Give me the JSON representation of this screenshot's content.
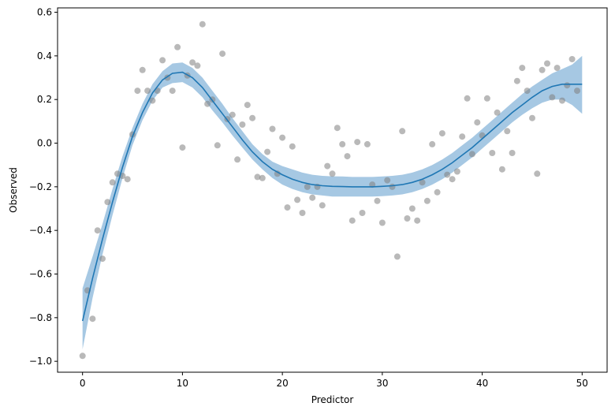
{
  "chart_data": {
    "type": "scatter",
    "title": "",
    "xlabel": "Predictor",
    "ylabel": "Observed",
    "xlim": [
      -2.5,
      52.5
    ],
    "ylim": [
      -1.05,
      0.62
    ],
    "grid": false,
    "legend": "none",
    "x_ticks": [
      0,
      10,
      20,
      30,
      40,
      50
    ],
    "y_ticks": [
      -1.0,
      -0.8,
      -0.6,
      -0.4,
      -0.2,
      0.0,
      0.2,
      0.4,
      0.6
    ],
    "x_tick_labels": [
      "0",
      "10",
      "20",
      "30",
      "40",
      "50"
    ],
    "y_tick_labels": [
      "−1.0",
      "−0.8",
      "−0.6",
      "−0.4",
      "−0.2",
      "0.0",
      "0.2",
      "0.4",
      "0.6"
    ],
    "colors": {
      "points": "#808080",
      "line": "#1f77b4",
      "band": "#a6c8e3"
    },
    "points": [
      [
        0.0,
        -0.975
      ],
      [
        0.5,
        -0.675
      ],
      [
        1.0,
        -0.805
      ],
      [
        1.5,
        -0.4
      ],
      [
        2.0,
        -0.53
      ],
      [
        2.5,
        -0.27
      ],
      [
        3.0,
        -0.18
      ],
      [
        3.5,
        -0.14
      ],
      [
        4.0,
        -0.15
      ],
      [
        4.5,
        -0.165
      ],
      [
        5.0,
        0.04
      ],
      [
        5.5,
        0.24
      ],
      [
        6.0,
        0.335
      ],
      [
        6.5,
        0.24
      ],
      [
        7.0,
        0.195
      ],
      [
        7.5,
        0.24
      ],
      [
        8.0,
        0.38
      ],
      [
        8.5,
        0.3
      ],
      [
        9.0,
        0.24
      ],
      [
        9.5,
        0.44
      ],
      [
        10.0,
        -0.02
      ],
      [
        10.5,
        0.31
      ],
      [
        11.0,
        0.37
      ],
      [
        11.5,
        0.355
      ],
      [
        12.0,
        0.545
      ],
      [
        12.5,
        0.18
      ],
      [
        13.0,
        0.2
      ],
      [
        13.5,
        -0.01
      ],
      [
        14.0,
        0.41
      ],
      [
        14.5,
        0.11
      ],
      [
        15.0,
        0.13
      ],
      [
        15.5,
        -0.075
      ],
      [
        16.0,
        0.085
      ],
      [
        16.5,
        0.175
      ],
      [
        17.0,
        0.115
      ],
      [
        17.5,
        -0.155
      ],
      [
        18.0,
        -0.16
      ],
      [
        18.5,
        -0.04
      ],
      [
        19.0,
        0.065
      ],
      [
        19.5,
        -0.14
      ],
      [
        20.0,
        0.025
      ],
      [
        20.5,
        -0.295
      ],
      [
        21.0,
        -0.015
      ],
      [
        21.5,
        -0.26
      ],
      [
        22.0,
        -0.32
      ],
      [
        22.5,
        -0.2
      ],
      [
        23.0,
        -0.25
      ],
      [
        23.5,
        -0.2
      ],
      [
        24.0,
        -0.285
      ],
      [
        24.5,
        -0.105
      ],
      [
        25.0,
        -0.14
      ],
      [
        25.5,
        0.07
      ],
      [
        26.0,
        -0.005
      ],
      [
        26.5,
        -0.06
      ],
      [
        27.0,
        -0.355
      ],
      [
        27.5,
        0.005
      ],
      [
        28.0,
        -0.32
      ],
      [
        28.5,
        -0.005
      ],
      [
        29.0,
        -0.19
      ],
      [
        29.5,
        -0.265
      ],
      [
        30.0,
        -0.365
      ],
      [
        30.5,
        -0.17
      ],
      [
        31.0,
        -0.2
      ],
      [
        31.5,
        -0.52
      ],
      [
        32.0,
        0.055
      ],
      [
        32.5,
        -0.345
      ],
      [
        33.0,
        -0.3
      ],
      [
        33.5,
        -0.355
      ],
      [
        34.0,
        -0.18
      ],
      [
        34.5,
        -0.265
      ],
      [
        35.0,
        -0.005
      ],
      [
        35.5,
        -0.225
      ],
      [
        36.0,
        0.045
      ],
      [
        36.5,
        -0.145
      ],
      [
        37.0,
        -0.165
      ],
      [
        37.5,
        -0.13
      ],
      [
        38.0,
        0.03
      ],
      [
        38.5,
        0.205
      ],
      [
        39.0,
        -0.05
      ],
      [
        39.5,
        0.095
      ],
      [
        40.0,
        0.035
      ],
      [
        40.5,
        0.205
      ],
      [
        41.0,
        -0.045
      ],
      [
        41.5,
        0.14
      ],
      [
        42.0,
        -0.12
      ],
      [
        42.5,
        0.055
      ],
      [
        43.0,
        -0.045
      ],
      [
        43.5,
        0.285
      ],
      [
        44.0,
        0.345
      ],
      [
        44.5,
        0.24
      ],
      [
        45.0,
        0.115
      ],
      [
        45.5,
        -0.14
      ],
      [
        46.0,
        0.335
      ],
      [
        46.5,
        0.365
      ],
      [
        47.0,
        0.21
      ],
      [
        47.5,
        0.345
      ],
      [
        48.0,
        0.195
      ],
      [
        48.5,
        0.265
      ],
      [
        49.0,
        0.385
      ],
      [
        49.5,
        0.24
      ]
    ],
    "fit_line": {
      "x": [
        0,
        1,
        2,
        3,
        4,
        5,
        6,
        7,
        8,
        9,
        10,
        11,
        12,
        13,
        14,
        15,
        16,
        17,
        18,
        19,
        20,
        21,
        22,
        23,
        24,
        25,
        26,
        27,
        28,
        29,
        30,
        31,
        32,
        33,
        34,
        35,
        36,
        37,
        38,
        39,
        40,
        41,
        42,
        43,
        44,
        45,
        46,
        47,
        48,
        49,
        50
      ],
      "y": [
        -0.815,
        -0.62,
        -0.44,
        -0.27,
        -0.11,
        0.03,
        0.14,
        0.23,
        0.29,
        0.32,
        0.325,
        0.3,
        0.255,
        0.195,
        0.135,
        0.075,
        0.015,
        -0.04,
        -0.085,
        -0.12,
        -0.145,
        -0.165,
        -0.18,
        -0.19,
        -0.195,
        -0.198,
        -0.199,
        -0.2,
        -0.2,
        -0.2,
        -0.198,
        -0.195,
        -0.19,
        -0.18,
        -0.165,
        -0.145,
        -0.12,
        -0.09,
        -0.055,
        -0.02,
        0.02,
        0.06,
        0.1,
        0.14,
        0.175,
        0.21,
        0.24,
        0.26,
        0.27,
        0.27,
        0.27
      ]
    },
    "confidence_band": {
      "x": [
        0,
        1,
        2,
        3,
        4,
        5,
        6,
        7,
        8,
        9,
        10,
        11,
        12,
        13,
        14,
        15,
        16,
        17,
        18,
        19,
        20,
        21,
        22,
        23,
        24,
        25,
        26,
        27,
        28,
        29,
        30,
        31,
        32,
        33,
        34,
        35,
        36,
        37,
        38,
        39,
        40,
        41,
        42,
        43,
        44,
        45,
        46,
        47,
        48,
        49,
        50
      ],
      "lower": [
        -0.945,
        -0.71,
        -0.51,
        -0.33,
        -0.16,
        -0.01,
        0.105,
        0.195,
        0.255,
        0.275,
        0.28,
        0.255,
        0.21,
        0.15,
        0.095,
        0.035,
        -0.02,
        -0.075,
        -0.12,
        -0.16,
        -0.19,
        -0.21,
        -0.225,
        -0.235,
        -0.24,
        -0.245,
        -0.245,
        -0.245,
        -0.245,
        -0.245,
        -0.243,
        -0.24,
        -0.235,
        -0.225,
        -0.21,
        -0.19,
        -0.165,
        -0.135,
        -0.1,
        -0.065,
        -0.025,
        0.015,
        0.055,
        0.095,
        0.13,
        0.16,
        0.185,
        0.2,
        0.2,
        0.175,
        0.135
      ],
      "upper": [
        -0.665,
        -0.52,
        -0.37,
        -0.21,
        -0.06,
        0.07,
        0.18,
        0.27,
        0.33,
        0.365,
        0.37,
        0.345,
        0.3,
        0.24,
        0.18,
        0.115,
        0.055,
        -0.005,
        -0.05,
        -0.085,
        -0.105,
        -0.12,
        -0.135,
        -0.145,
        -0.15,
        -0.152,
        -0.153,
        -0.155,
        -0.155,
        -0.155,
        -0.153,
        -0.15,
        -0.145,
        -0.135,
        -0.12,
        -0.1,
        -0.075,
        -0.045,
        -0.01,
        0.025,
        0.065,
        0.105,
        0.145,
        0.185,
        0.225,
        0.26,
        0.29,
        0.32,
        0.34,
        0.36,
        0.4
      ]
    }
  }
}
